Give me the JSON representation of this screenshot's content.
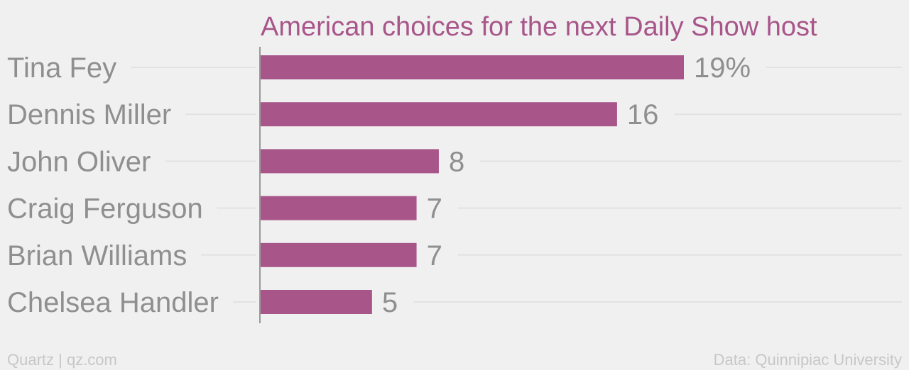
{
  "chart_data": {
    "type": "bar",
    "orientation": "horizontal",
    "title": "American choices for the next Daily Show host",
    "categories": [
      "Tina Fey",
      "Dennis Miller",
      "John Oliver",
      "Craig Ferguson",
      "Brian Williams",
      "Chelsea Handler"
    ],
    "values": [
      19,
      16,
      8,
      7,
      7,
      5
    ],
    "value_labels": [
      "19%",
      "16",
      "8",
      "7",
      "7",
      "5"
    ],
    "xlim": [
      0,
      19
    ],
    "grid": true,
    "colors": {
      "bar": "#a8568a",
      "title": "#a8568a",
      "label": "#8f8f8f",
      "gridline": "#e2e2e2",
      "axis": "#999999",
      "footer": "#c7c7c7",
      "background": "#f0f0f0"
    }
  },
  "footer": {
    "source_left": "Quartz | qz.com",
    "source_right": "Data: Quinnipiac University"
  }
}
